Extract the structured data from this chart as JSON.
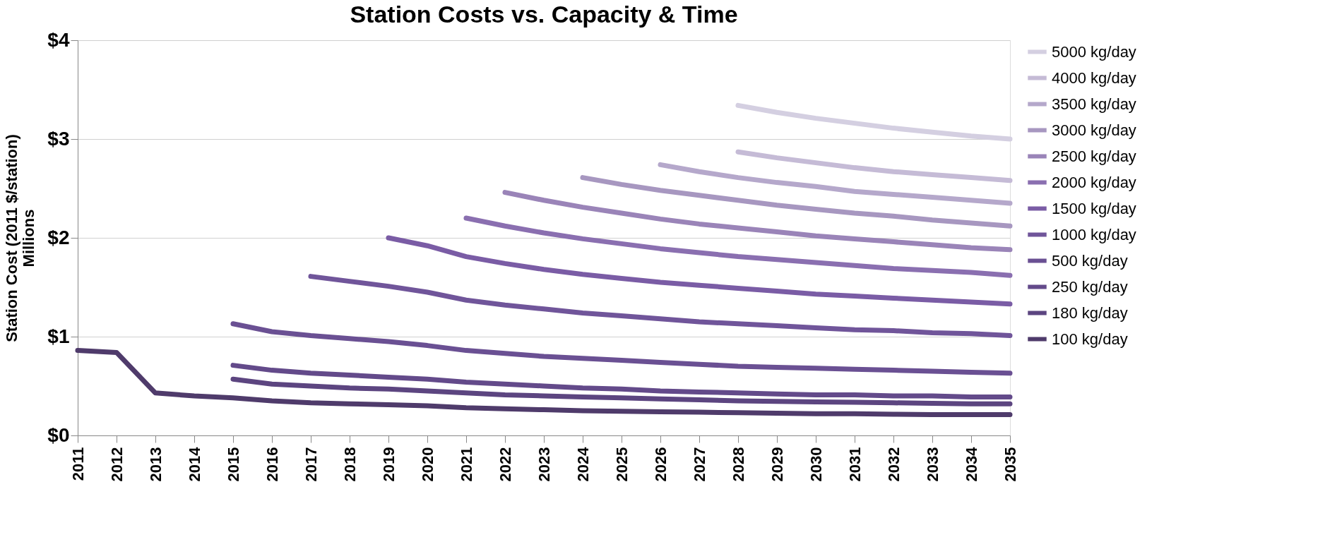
{
  "chart_data": {
    "type": "line",
    "title": "Station Costs vs. Capacity & Time",
    "ylabel": "Station Cost (2011 $/station)",
    "annotations": [
      "Millions"
    ],
    "categories": [
      "2011",
      "2012",
      "2013",
      "2014",
      "2015",
      "2016",
      "2017",
      "2018",
      "2019",
      "2020",
      "2021",
      "2022",
      "2023",
      "2024",
      "2025",
      "2026",
      "2027",
      "2028",
      "2029",
      "2030",
      "2031",
      "2032",
      "2033",
      "2034",
      "2035"
    ],
    "ylim": [
      0,
      4
    ],
    "yticks": [
      {
        "value": 0,
        "label": "$0"
      },
      {
        "value": 1,
        "label": "$1"
      },
      {
        "value": 2,
        "label": "$2"
      },
      {
        "value": 3,
        "label": "$3"
      },
      {
        "value": 4,
        "label": "$4"
      }
    ],
    "grid": "y",
    "legend": "right",
    "marker": "none",
    "line_style": "solid",
    "series": [
      {
        "name": "5000 kg/day",
        "color": "#d4cfe1",
        "values": [
          null,
          null,
          null,
          null,
          null,
          null,
          null,
          null,
          null,
          null,
          null,
          null,
          null,
          null,
          null,
          null,
          null,
          3.34,
          3.27,
          3.21,
          3.16,
          3.11,
          3.07,
          3.03,
          3.0
        ]
      },
      {
        "name": "4000 kg/day",
        "color": "#c5bbd6",
        "values": [
          null,
          null,
          null,
          null,
          null,
          null,
          null,
          null,
          null,
          null,
          null,
          null,
          null,
          null,
          null,
          null,
          null,
          2.87,
          2.81,
          2.76,
          2.71,
          2.67,
          2.64,
          2.61,
          2.58
        ]
      },
      {
        "name": "3500 kg/day",
        "color": "#b5a8cb",
        "values": [
          null,
          null,
          null,
          null,
          null,
          null,
          null,
          null,
          null,
          null,
          null,
          null,
          null,
          null,
          null,
          2.74,
          2.67,
          2.61,
          2.56,
          2.52,
          2.47,
          2.44,
          2.41,
          2.38,
          2.35
        ]
      },
      {
        "name": "3000 kg/day",
        "color": "#a797c0",
        "values": [
          null,
          null,
          null,
          null,
          null,
          null,
          null,
          null,
          null,
          null,
          null,
          null,
          null,
          2.61,
          2.54,
          2.48,
          2.43,
          2.38,
          2.33,
          2.29,
          2.25,
          2.22,
          2.18,
          2.15,
          2.12
        ]
      },
      {
        "name": "2500 kg/day",
        "color": "#9a84b8",
        "values": [
          null,
          null,
          null,
          null,
          null,
          null,
          null,
          null,
          null,
          null,
          null,
          2.46,
          2.38,
          2.31,
          2.25,
          2.19,
          2.14,
          2.1,
          2.06,
          2.02,
          1.99,
          1.96,
          1.93,
          1.9,
          1.88
        ]
      },
      {
        "name": "2000 kg/day",
        "color": "#8a6fb0",
        "values": [
          null,
          null,
          null,
          null,
          null,
          null,
          null,
          null,
          null,
          null,
          2.2,
          2.12,
          2.05,
          1.99,
          1.94,
          1.89,
          1.85,
          1.81,
          1.78,
          1.75,
          1.72,
          1.69,
          1.67,
          1.65,
          1.62
        ]
      },
      {
        "name": "1500 kg/day",
        "color": "#7a5ca5",
        "values": [
          null,
          null,
          null,
          null,
          null,
          null,
          null,
          null,
          2.0,
          1.92,
          1.81,
          1.74,
          1.68,
          1.63,
          1.59,
          1.55,
          1.52,
          1.49,
          1.46,
          1.43,
          1.41,
          1.39,
          1.37,
          1.35,
          1.33
        ]
      },
      {
        "name": "1000 kg/day",
        "color": "#70559a",
        "values": [
          null,
          null,
          null,
          null,
          null,
          null,
          1.61,
          1.56,
          1.51,
          1.45,
          1.37,
          1.32,
          1.28,
          1.24,
          1.21,
          1.18,
          1.15,
          1.13,
          1.11,
          1.09,
          1.07,
          1.06,
          1.04,
          1.03,
          1.01
        ]
      },
      {
        "name": "500 kg/day",
        "color": "#6a5093",
        "values": [
          null,
          null,
          null,
          null,
          1.13,
          1.05,
          1.01,
          0.98,
          0.95,
          0.91,
          0.86,
          0.83,
          0.8,
          0.78,
          0.76,
          0.74,
          0.72,
          0.7,
          0.69,
          0.68,
          0.67,
          0.66,
          0.65,
          0.64,
          0.63
        ]
      },
      {
        "name": "250 kg/day",
        "color": "#634a8a",
        "values": [
          null,
          null,
          null,
          null,
          0.71,
          0.66,
          0.63,
          0.61,
          0.59,
          0.57,
          0.54,
          0.52,
          0.5,
          0.48,
          0.47,
          0.45,
          0.44,
          0.43,
          0.42,
          0.41,
          0.41,
          0.4,
          0.4,
          0.39,
          0.39
        ]
      },
      {
        "name": "180 kg/day",
        "color": "#5c4580",
        "values": [
          null,
          null,
          null,
          null,
          0.57,
          0.52,
          0.5,
          0.48,
          0.47,
          0.45,
          0.43,
          0.41,
          0.4,
          0.39,
          0.38,
          0.37,
          0.36,
          0.35,
          0.345,
          0.34,
          0.335,
          0.33,
          0.325,
          0.32,
          0.32
        ]
      },
      {
        "name": "100 kg/day",
        "color": "#4f3b6b",
        "values": [
          0.86,
          0.84,
          0.43,
          0.4,
          0.38,
          0.35,
          0.33,
          0.32,
          0.31,
          0.3,
          0.28,
          0.27,
          0.26,
          0.25,
          0.245,
          0.24,
          0.235,
          0.23,
          0.225,
          0.22,
          0.22,
          0.215,
          0.21,
          0.21,
          0.21
        ]
      }
    ]
  }
}
